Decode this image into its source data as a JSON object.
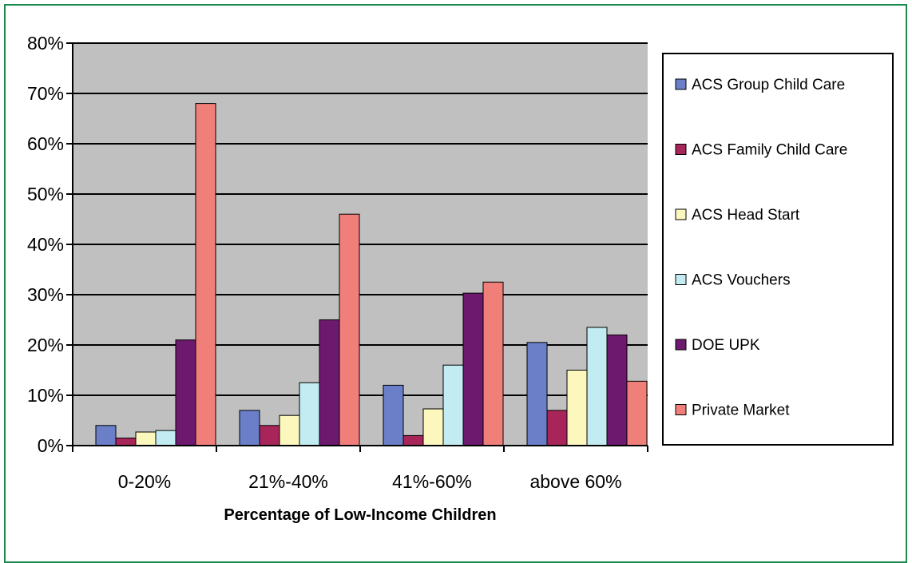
{
  "colors": {
    "frame": "#1a8a4e",
    "plot_bg": "#c0c0c0",
    "grid": "#000000"
  },
  "chart_data": {
    "type": "bar",
    "title": "",
    "xlabel": "Percentage of Low-Income Children",
    "ylabel": "",
    "ylim": [
      0,
      80
    ],
    "y_ticks": [
      "0%",
      "10%",
      "20%",
      "30%",
      "40%",
      "50%",
      "60%",
      "70%",
      "80%"
    ],
    "grid": true,
    "legend_position": "right",
    "categories": [
      "0-20%",
      "21%-40%",
      "41%-60%",
      "above 60%"
    ],
    "series": [
      {
        "name": "ACS Group Child Care",
        "color": "#6a7fc8",
        "values": [
          4,
          7,
          12,
          20.5
        ]
      },
      {
        "name": "ACS Family Child Care",
        "color": "#a8255a",
        "values": [
          1.5,
          4,
          2,
          7
        ]
      },
      {
        "name": "ACS Head Start",
        "color": "#fbf7bd",
        "values": [
          2.7,
          6,
          7.3,
          15
        ]
      },
      {
        "name": "ACS Vouchers",
        "color": "#c2ecf2",
        "values": [
          3,
          12.5,
          16,
          23.5
        ]
      },
      {
        "name": "DOE UPK",
        "color": "#6d1a6e",
        "values": [
          21,
          25,
          30.3,
          22
        ]
      },
      {
        "name": "Private Market",
        "color": "#f07f7a",
        "values": [
          68,
          46,
          32.5,
          12.8
        ]
      }
    ]
  }
}
